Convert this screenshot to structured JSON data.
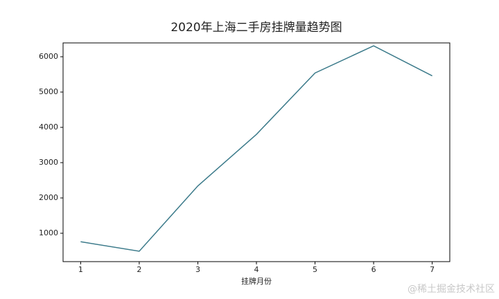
{
  "chart_data": {
    "type": "line",
    "title": "2020年上海二手房挂牌量趋势图",
    "x_label": "挂牌月份",
    "x": [
      1,
      2,
      3,
      4,
      5,
      6,
      7
    ],
    "series": [
      {
        "name": "挂牌量",
        "color": "#3b7a8a",
        "values": [
          760,
          490,
          2340,
          3800,
          5540,
          6310,
          5460
        ]
      }
    ],
    "xlim": [
      0.7,
      7.3
    ],
    "xticks": [
      1,
      2,
      3,
      4,
      5,
      6,
      7
    ],
    "ylim": [
      196,
      6392
    ],
    "yticks": [
      1000,
      2000,
      3000,
      4000,
      5000,
      6000
    ],
    "watermark": "@稀土掘金技术社区"
  }
}
